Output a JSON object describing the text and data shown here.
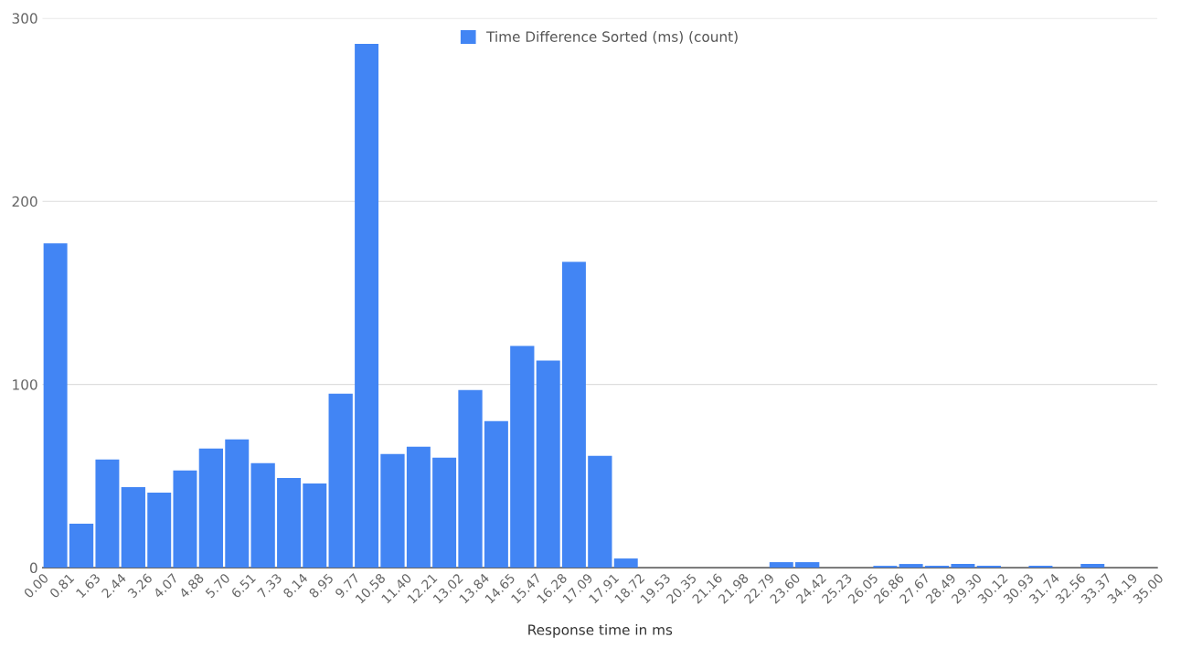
{
  "chart_data": {
    "type": "histogram",
    "xlabel": "Response time in ms",
    "bins": [
      0.0,
      0.81,
      1.63,
      2.44,
      3.26,
      4.07,
      4.88,
      5.7,
      6.51,
      7.33,
      8.14,
      8.95,
      9.77,
      10.58,
      11.4,
      12.21,
      13.02,
      13.84,
      14.65,
      15.47,
      16.28,
      17.09,
      17.91,
      18.72,
      19.53,
      20.35,
      21.16,
      21.98,
      22.79,
      23.6,
      24.42,
      25.23,
      26.05,
      26.86,
      27.67,
      28.49,
      29.3,
      30.12,
      30.93,
      31.74,
      32.56,
      33.37,
      34.19,
      35.0
    ],
    "series": [
      {
        "name": "Time Difference Sorted (ms) (count)",
        "color": "#4285f4",
        "values": [
          177,
          24,
          59,
          44,
          41,
          53,
          65,
          70,
          57,
          49,
          46,
          95,
          286,
          62,
          66,
          60,
          97,
          80,
          121,
          113,
          167,
          61,
          5,
          0,
          0,
          0,
          0,
          0,
          3,
          3,
          0,
          0,
          1,
          2,
          1,
          2,
          1,
          0,
          1,
          0,
          2,
          0,
          0
        ]
      }
    ],
    "xticks": [
      {
        "value": 0.0,
        "label": "0.00"
      },
      {
        "value": 0.81,
        "label": "0.81"
      },
      {
        "value": 1.63,
        "label": "1.63"
      },
      {
        "value": 2.44,
        "label": "2.44"
      },
      {
        "value": 3.26,
        "label": "3.26"
      },
      {
        "value": 4.07,
        "label": "4.07"
      },
      {
        "value": 4.88,
        "label": "4.88"
      },
      {
        "value": 5.7,
        "label": "5.70"
      },
      {
        "value": 6.51,
        "label": "6.51"
      },
      {
        "value": 7.33,
        "label": "7.33"
      },
      {
        "value": 8.14,
        "label": "8.14"
      },
      {
        "value": 8.95,
        "label": "8.95"
      },
      {
        "value": 9.77,
        "label": "9.77"
      },
      {
        "value": 10.58,
        "label": "10.58"
      },
      {
        "value": 11.4,
        "label": "11.40"
      },
      {
        "value": 12.21,
        "label": "12.21"
      },
      {
        "value": 13.02,
        "label": "13.02"
      },
      {
        "value": 13.84,
        "label": "13.84"
      },
      {
        "value": 14.65,
        "label": "14.65"
      },
      {
        "value": 15.47,
        "label": "15.47"
      },
      {
        "value": 16.28,
        "label": "16.28"
      },
      {
        "value": 17.09,
        "label": "17.09"
      },
      {
        "value": 17.91,
        "label": "17.91"
      },
      {
        "value": 18.72,
        "label": "18.72"
      },
      {
        "value": 19.53,
        "label": "19.53"
      },
      {
        "value": 20.35,
        "label": "20.35"
      },
      {
        "value": 21.16,
        "label": "21.16"
      },
      {
        "value": 21.98,
        "label": "21.98"
      },
      {
        "value": 22.79,
        "label": "22.79"
      },
      {
        "value": 23.6,
        "label": "23.60"
      },
      {
        "value": 24.42,
        "label": "24.42"
      },
      {
        "value": 25.23,
        "label": "25.23"
      },
      {
        "value": 26.05,
        "label": "26.05"
      },
      {
        "value": 26.86,
        "label": "26.86"
      },
      {
        "value": 27.67,
        "label": "27.67"
      },
      {
        "value": 28.49,
        "label": "28.49"
      },
      {
        "value": 29.3,
        "label": "29.30"
      },
      {
        "value": 30.12,
        "label": "30.12"
      },
      {
        "value": 30.93,
        "label": "30.93"
      },
      {
        "value": 31.74,
        "label": "31.74"
      },
      {
        "value": 32.56,
        "label": "32.56"
      },
      {
        "value": 33.37,
        "label": "33.37"
      },
      {
        "value": 34.19,
        "label": "34.19"
      },
      {
        "value": 35.0,
        "label": "35.00"
      }
    ],
    "xlim": [
      0,
      35
    ],
    "ylim": [
      0,
      300
    ],
    "yticks": [
      0,
      100,
      200,
      300
    ],
    "grid": "y",
    "legend": "top"
  }
}
